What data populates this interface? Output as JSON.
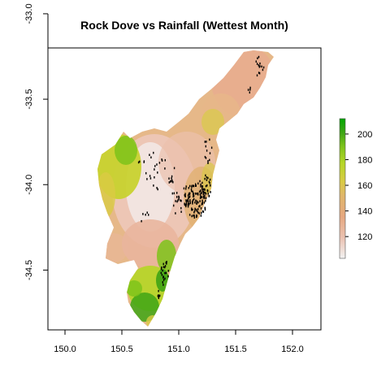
{
  "chart_data": {
    "type": "heatmap",
    "title": "Rock Dove vs Rainfall (Wettest Month)",
    "xlabel": "",
    "ylabel": "",
    "xlim": [
      149.85,
      152.25
    ],
    "ylim": [
      -34.85,
      -33.2
    ],
    "x_ticks": [
      "150.0",
      "150.5",
      "151.0",
      "151.5",
      "152.0"
    ],
    "x_tick_values": [
      150.0,
      150.5,
      151.0,
      151.5,
      152.0
    ],
    "y_ticks": [
      "-33.0",
      "-33.5",
      "-34.0",
      "-34.5"
    ],
    "y_tick_values": [
      -33.0,
      -33.5,
      -34.0,
      -34.5
    ],
    "legend": {
      "position": "right",
      "min": 103,
      "max": 212,
      "tick_labels": [
        "120",
        "140",
        "160",
        "180",
        "200"
      ],
      "tick_values": [
        120,
        140,
        160,
        180,
        200
      ],
      "colors": [
        "#f2f2f2",
        "#ebc1b0",
        "#e6a880",
        "#e0b66a",
        "#d9cb44",
        "#b5d626",
        "#7ec31a",
        "#3ea515",
        "#00a600"
      ]
    },
    "overlay": {
      "name": "occurrence points",
      "color": "#000000"
    }
  }
}
